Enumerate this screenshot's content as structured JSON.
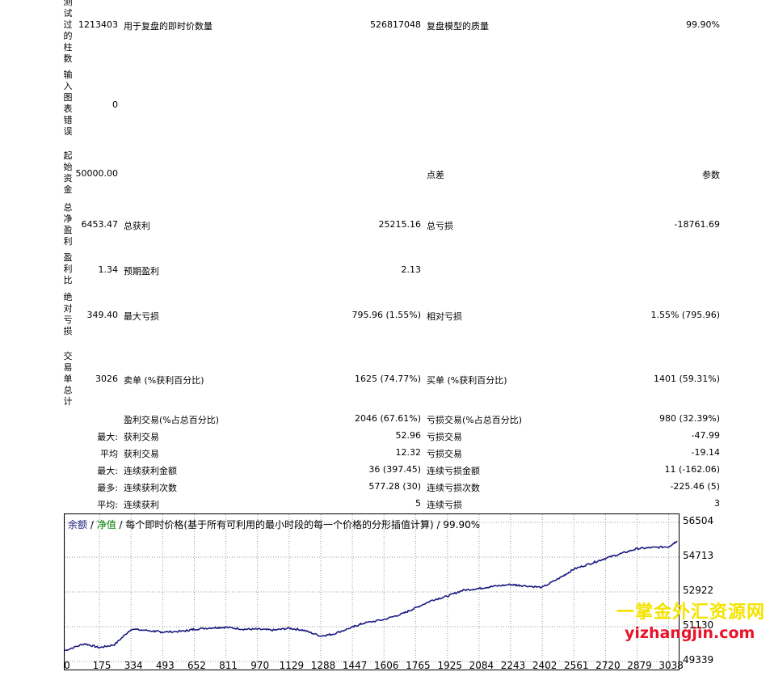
{
  "report": {
    "bars": {
      "label": "测试过的柱数",
      "value": "1213403",
      "ticks_label": "用于复盘的即时价数量",
      "ticks_value": "526817048",
      "quality_label": "复盘模型的质量",
      "quality_value": "99.90%"
    },
    "errors": {
      "label": "输入图表错误",
      "value": "0"
    },
    "deposit": {
      "label": "起始资金",
      "value": "50000.00",
      "spread_label": "点差",
      "spread_value": "参数"
    },
    "net": {
      "label": "总净盈利",
      "value": "6453.47",
      "gross_profit_label": "总获利",
      "gross_profit_value": "25215.16",
      "gross_loss_label": "总亏损",
      "gross_loss_value": "-18761.69"
    },
    "pf": {
      "label": "盈利比",
      "value": "1.34",
      "expected_label": "预期盈利",
      "expected_value": "2.13"
    },
    "abs_dd": {
      "label": "绝对亏损",
      "value": "349.40",
      "max_dd_label": "最大亏损",
      "max_dd_value": "795.96 (1.55%)",
      "rel_dd_label": "相对亏损",
      "rel_dd_value": "1.55% (795.96)"
    },
    "trades": {
      "label": "交易单总计",
      "value": "3026",
      "short_label": "卖单 (%获利百分比)",
      "short_value": "1625 (74.77%)",
      "long_label": "买单 (%获利百分比)",
      "long_value": "1401 (59.31%)"
    },
    "rows": [
      {
        "prefix": "",
        "l1": "盈利交易(%占总百分比)",
        "v1": "2046 (67.61%)",
        "l2": "亏损交易(%占总百分比)",
        "v2": "980 (32.39%)"
      },
      {
        "prefix": "最大:",
        "l1": "获利交易",
        "v1": "52.96",
        "l2": "亏损交易",
        "v2": "-47.99"
      },
      {
        "prefix": "平均",
        "l1": "获利交易",
        "v1": "12.32",
        "l2": "亏损交易",
        "v2": "-19.14"
      },
      {
        "prefix": "最大:",
        "l1": "连续获利金额",
        "v1": "36 (397.45)",
        "l2": "连续亏损金额",
        "v2": "11 (-162.06)"
      },
      {
        "prefix": "最多:",
        "l1": "连续获利次数",
        "v1": "577.28 (30)",
        "l2": "连续亏损次数",
        "v2": "-225.46 (5)"
      },
      {
        "prefix": "平均:",
        "l1": "连续获利",
        "v1": "5",
        "l2": "连续亏损",
        "v2": "3"
      }
    ]
  },
  "chart_title": {
    "balance": "余额",
    "sep1": " / ",
    "equity": "净值",
    "sep2": " / 每个即时价格(基于所有可利用的最小时段的每一个价格的分形插值计算) / 99.90%"
  },
  "colors": {
    "balance": "#1a1a80",
    "equity": "#008000",
    "watermark_cn": "#f5e300",
    "watermark_en": "#e8132a"
  },
  "chart_data": {
    "type": "line",
    "title": "",
    "x": [
      0,
      100,
      175,
      250,
      334,
      450,
      493,
      600,
      652,
      750,
      811,
      900,
      970,
      1050,
      1129,
      1200,
      1288,
      1350,
      1447,
      1500,
      1606,
      1700,
      1765,
      1850,
      1925,
      2000,
      2084,
      2150,
      2243,
      2300,
      2402,
      2500,
      2561,
      2650,
      2720,
      2800,
      2879,
      2950,
      3038,
      3080
    ],
    "series": [
      {
        "values": [
          49900,
          50250,
          50050,
          50200,
          51000,
          50900,
          50850,
          50900,
          51000,
          51080,
          51100,
          51000,
          51000,
          50950,
          51050,
          50950,
          50650,
          50750,
          51100,
          51300,
          51500,
          51800,
          52100,
          52500,
          52700,
          53000,
          53100,
          53200,
          53300,
          53250,
          53150,
          53700,
          54100,
          54400,
          54650,
          54900,
          55150,
          55200,
          55250,
          55550
        ]
      }
    ],
    "x_ticks": [
      "0",
      "175",
      "334",
      "493",
      "652",
      "811",
      "970",
      "1129",
      "1288",
      "1447",
      "1606",
      "1765",
      "1925",
      "2084",
      "2243",
      "2402",
      "2561",
      "2720",
      "2879",
      "3038"
    ],
    "y_ticks": [
      "56504",
      "54713",
      "52922",
      "51130",
      "49339"
    ],
    "xlim": [
      0,
      3080
    ],
    "ylim": [
      49339,
      56504
    ],
    "grid": true
  },
  "watermark": {
    "cn": "一掌金外汇资源网",
    "en": "yizhangjin.com"
  }
}
